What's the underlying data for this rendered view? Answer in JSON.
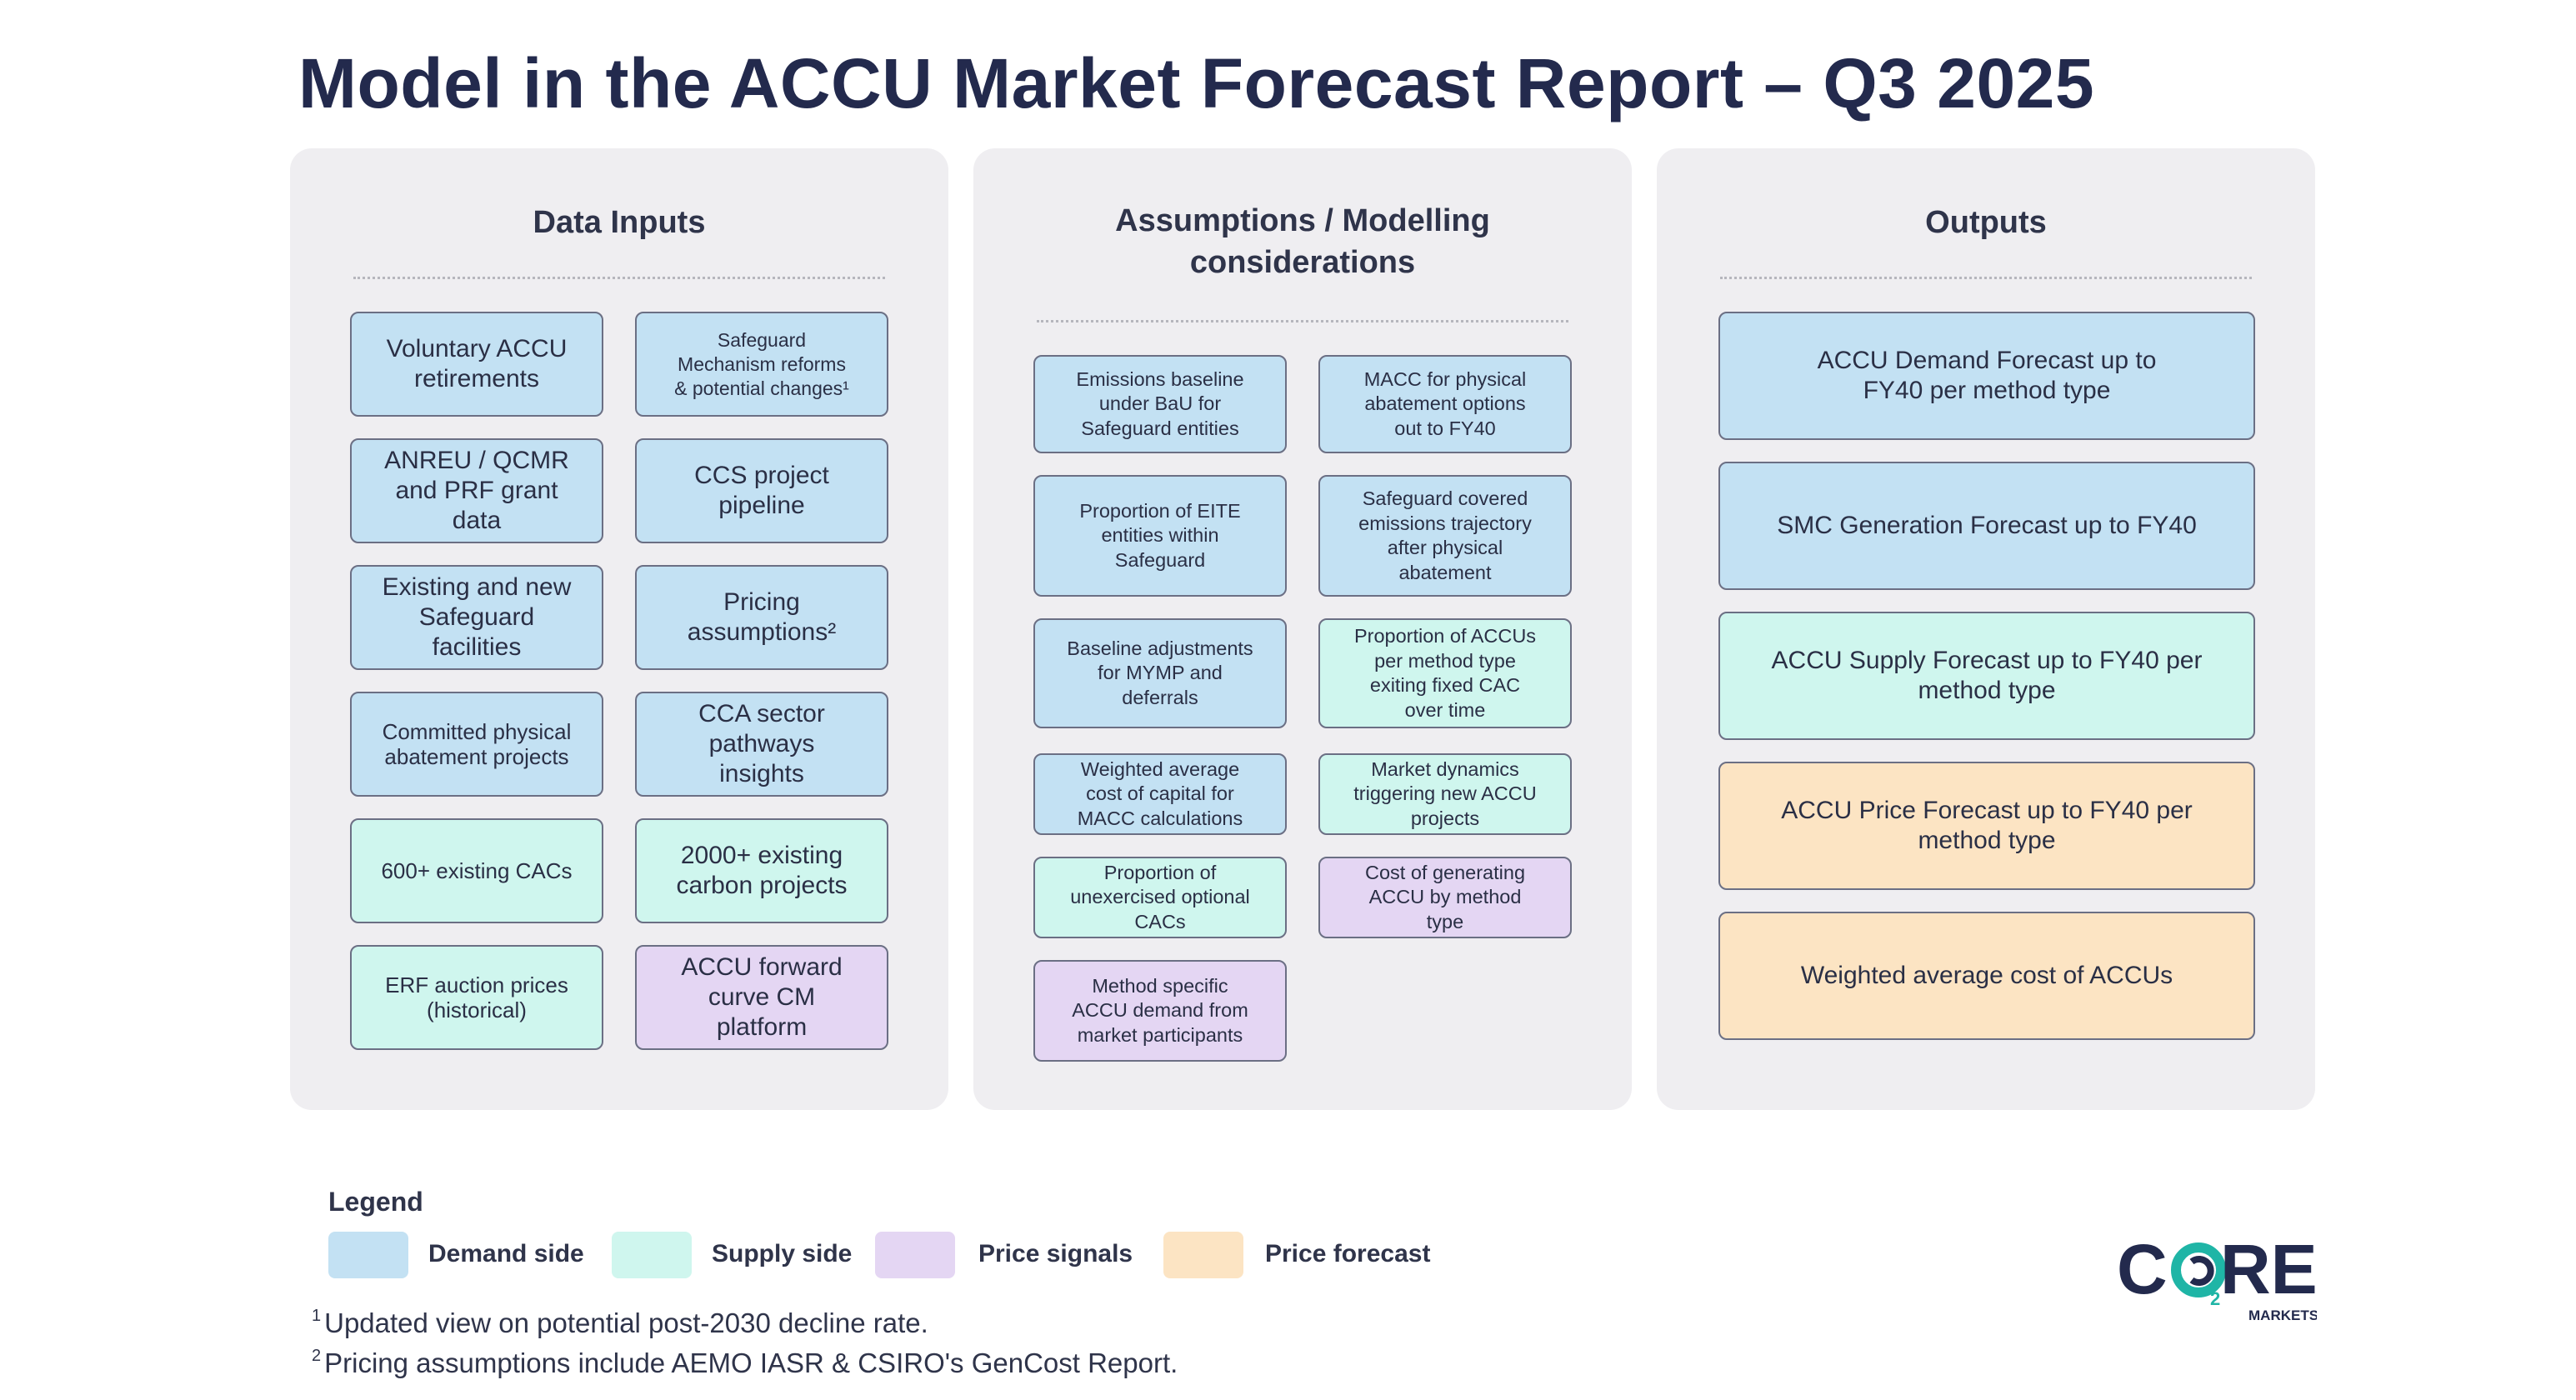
{
  "title": "Model in the ACCU Market Forecast Report – Q3 2025",
  "panels": {
    "inputs": {
      "title": "Data Inputs",
      "boxes": [
        {
          "lines": [
            "Voluntary ACCU",
            "retirements"
          ],
          "category": "demand"
        },
        {
          "lines": [
            "Safeguard",
            "Mechanism reforms",
            "& potential changes¹"
          ],
          "category": "demand"
        },
        {
          "lines": [
            "ANREU / QCMR",
            "and PRF grant",
            "data"
          ],
          "category": "demand"
        },
        {
          "lines": [
            "CCS project",
            "pipeline"
          ],
          "category": "demand"
        },
        {
          "lines": [
            "Existing and new",
            "Safeguard",
            "facilities"
          ],
          "category": "demand"
        },
        {
          "lines": [
            "Pricing",
            "assumptions²"
          ],
          "category": "demand"
        },
        {
          "lines": [
            "Committed physical",
            "abatement projects"
          ],
          "category": "demand"
        },
        {
          "lines": [
            "CCA sector",
            "pathways",
            "insights"
          ],
          "category": "demand"
        },
        {
          "lines": [
            "600+ existing CACs"
          ],
          "category": "supply"
        },
        {
          "lines": [
            "2000+ existing",
            "carbon projects"
          ],
          "category": "supply"
        },
        {
          "lines": [
            "ERF auction prices",
            "(historical)"
          ],
          "category": "supply"
        },
        {
          "lines": [
            "ACCU forward",
            "curve CM",
            "platform"
          ],
          "category": "price"
        }
      ]
    },
    "modelling": {
      "title_lines": [
        "Assumptions / Modelling",
        "considerations"
      ],
      "boxes": [
        {
          "lines": [
            "Emissions baseline",
            "under BaU for",
            "Safeguard entities"
          ],
          "category": "demand"
        },
        {
          "lines": [
            "MACC for physical",
            "abatement options",
            "out to FY40"
          ],
          "category": "demand"
        },
        {
          "lines": [
            "Proportion of EITE",
            "entities within",
            "Safeguard"
          ],
          "category": "demand"
        },
        {
          "lines": [
            "Safeguard covered",
            "emissions trajectory",
            "after physical",
            "abatement"
          ],
          "category": "demand"
        },
        {
          "lines": [
            "Baseline adjustments",
            "for MYMP and",
            "deferrals"
          ],
          "category": "demand"
        },
        {
          "lines": [
            "Proportion of ACCUs",
            "per method type",
            "exiting fixed CAC",
            "over time"
          ],
          "category": "supply"
        },
        {
          "lines": [
            "Weighted average",
            "cost of capital for",
            "MACC calculations"
          ],
          "category": "demand"
        },
        {
          "lines": [
            "Market dynamics",
            "triggering new ACCU",
            "projects"
          ],
          "category": "supply"
        },
        {
          "lines": [
            "Proportion of",
            "unexercised optional",
            "CACs"
          ],
          "category": "supply"
        },
        {
          "lines": [
            "Cost of generating",
            "ACCU by method",
            "type"
          ],
          "category": "price"
        },
        {
          "lines": [
            "Method specific",
            "ACCU demand from",
            "market participants"
          ],
          "category": "price"
        }
      ]
    },
    "outputs": {
      "title": "Outputs",
      "boxes": [
        {
          "lines": [
            "ACCU Demand Forecast up to",
            "FY40 per method type"
          ],
          "category": "demand"
        },
        {
          "lines": [
            "SMC Generation Forecast up to FY40"
          ],
          "category": "demand"
        },
        {
          "lines": [
            "ACCU Supply Forecast up to FY40 per",
            "method type"
          ],
          "category": "supply"
        },
        {
          "lines": [
            "ACCU Price Forecast up to FY40 per",
            "method type"
          ],
          "category": "forecast"
        },
        {
          "lines": [
            "Weighted average cost of ACCUs"
          ],
          "category": "forecast"
        }
      ]
    }
  },
  "legend": {
    "title": "Legend",
    "items": [
      {
        "label": "Demand side",
        "color": "#c3e1f3"
      },
      {
        "label": "Supply side",
        "color": "#cff6ee"
      },
      {
        "label": "Price signals",
        "color": "#e4d6f3"
      },
      {
        "label": "Price forecast",
        "color": "#fce4c3"
      }
    ]
  },
  "footnotes": [
    {
      "mark": "1",
      "text": "Updated view on potential post-2030 decline rate."
    },
    {
      "mark": "2",
      "text": "Pricing assumptions include AEMO IASR & CSIRO's GenCost Report."
    }
  ],
  "logo": {
    "word": "CORE",
    "subscript": "2",
    "tagline": "MARKETS"
  },
  "colors": {
    "demand": "#c3e1f3",
    "supply": "#cff6ee",
    "price": "#e4d6f3",
    "forecast": "#fce4c3",
    "navy": "#232a4d",
    "teal": "#1fb5a6"
  }
}
